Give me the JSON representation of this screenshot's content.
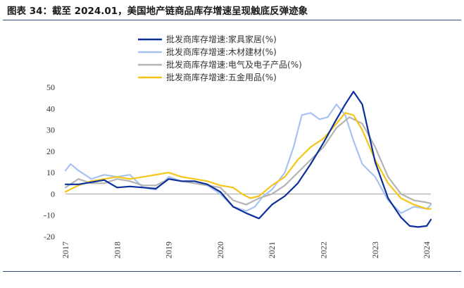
{
  "title": "图表 34：截至 2024.01，美国地产链商品库存增速呈现触底反弹迹象",
  "colors": {
    "rule": "#2f4f86"
  },
  "chart_data": {
    "type": "line",
    "title": "图表 34：截至 2024.01，美国地产链商品库存增速呈现触底反弹迹象",
    "xlabel": "",
    "ylabel": "",
    "ylim": [
      -20,
      50
    ],
    "yticks": [
      -20,
      -10,
      0,
      10,
      20,
      30,
      40,
      50
    ],
    "xlim": [
      2017,
      2024.08
    ],
    "xticks": [
      "2017",
      "2018",
      "2019",
      "2020",
      "2021",
      "2022",
      "2023",
      "2024"
    ],
    "legend_position": "top-center",
    "series": [
      {
        "name": "批发商库存增速:家具家居(%)",
        "color": "#0d2f9c",
        "x": [
          2017.0,
          2017.25,
          2017.5,
          2017.75,
          2018.0,
          2018.25,
          2018.5,
          2018.75,
          2019.0,
          2019.25,
          2019.5,
          2019.75,
          2020.0,
          2020.25,
          2020.5,
          2020.75,
          2021.0,
          2021.25,
          2021.5,
          2021.75,
          2022.0,
          2022.25,
          2022.42,
          2022.58,
          2022.75,
          2023.0,
          2023.25,
          2023.5,
          2023.67,
          2023.83,
          2024.0,
          2024.08
        ],
        "y": [
          4.5,
          4.5,
          5.5,
          6.5,
          3,
          3.5,
          3,
          2.5,
          7,
          6,
          6,
          4.5,
          1,
          -6,
          -9,
          -11.5,
          -5,
          -1,
          5,
          14,
          24,
          35,
          42,
          48,
          42,
          15,
          -2,
          -11,
          -15,
          -15.5,
          -15,
          -12
        ]
      },
      {
        "name": "批发商库存增速:木材建材(%)",
        "color": "#a8c3ef",
        "x": [
          2017.0,
          2017.1,
          2017.25,
          2017.5,
          2017.75,
          2018.0,
          2018.25,
          2018.5,
          2018.75,
          2019.0,
          2019.25,
          2019.5,
          2019.75,
          2020.0,
          2020.25,
          2020.5,
          2020.67,
          2020.83,
          2021.0,
          2021.25,
          2021.42,
          2021.58,
          2021.75,
          2021.92,
          2022.08,
          2022.25,
          2022.42,
          2022.58,
          2022.75,
          2023.0,
          2023.25,
          2023.5,
          2023.75,
          2024.0,
          2024.08
        ],
        "y": [
          11,
          14,
          11,
          7,
          9,
          8,
          9,
          3,
          2,
          8,
          6,
          5,
          4,
          0,
          -6,
          -8,
          -6,
          -1,
          2,
          10,
          22,
          37,
          38,
          35,
          36,
          42,
          37,
          25,
          14,
          8,
          -3,
          -9,
          -6,
          -7,
          -5
        ]
      },
      {
        "name": "批发商库存增速:电气及电子产品(%)",
        "color": "#b4b4b4",
        "x": [
          2017.0,
          2017.25,
          2017.5,
          2017.75,
          2018.0,
          2018.25,
          2018.5,
          2018.75,
          2019.0,
          2019.25,
          2019.5,
          2019.75,
          2020.0,
          2020.25,
          2020.5,
          2020.75,
          2021.0,
          2021.25,
          2021.5,
          2021.75,
          2022.0,
          2022.25,
          2022.5,
          2022.75,
          2023.0,
          2023.25,
          2023.5,
          2023.75,
          2024.0,
          2024.08
        ],
        "y": [
          3,
          7,
          5,
          5,
          7,
          6,
          4,
          4,
          7,
          6,
          5,
          4,
          3,
          -3,
          -5,
          -2,
          0,
          4,
          10,
          16,
          22,
          31,
          36,
          33,
          22,
          8,
          0,
          -3,
          -4,
          -4.5
        ]
      },
      {
        "name": "批发商库存增速:五金用品(%)",
        "color": "#f5c518",
        "x": [
          2017.0,
          2017.25,
          2017.5,
          2017.75,
          2018.0,
          2018.25,
          2018.5,
          2018.75,
          2019.0,
          2019.25,
          2019.5,
          2019.75,
          2020.0,
          2020.25,
          2020.42,
          2020.58,
          2020.75,
          2021.0,
          2021.25,
          2021.5,
          2021.75,
          2022.0,
          2022.25,
          2022.42,
          2022.58,
          2022.75,
          2023.0,
          2023.25,
          2023.5,
          2023.75,
          2024.0,
          2024.08
        ],
        "y": [
          1,
          4,
          6,
          7,
          8,
          7,
          8,
          9,
          10,
          8,
          7,
          6,
          4,
          3,
          0,
          -2,
          -1,
          4,
          8,
          16,
          22,
          26,
          33,
          38,
          37,
          30,
          16,
          5,
          -2,
          -5,
          -7,
          -7
        ]
      }
    ]
  }
}
